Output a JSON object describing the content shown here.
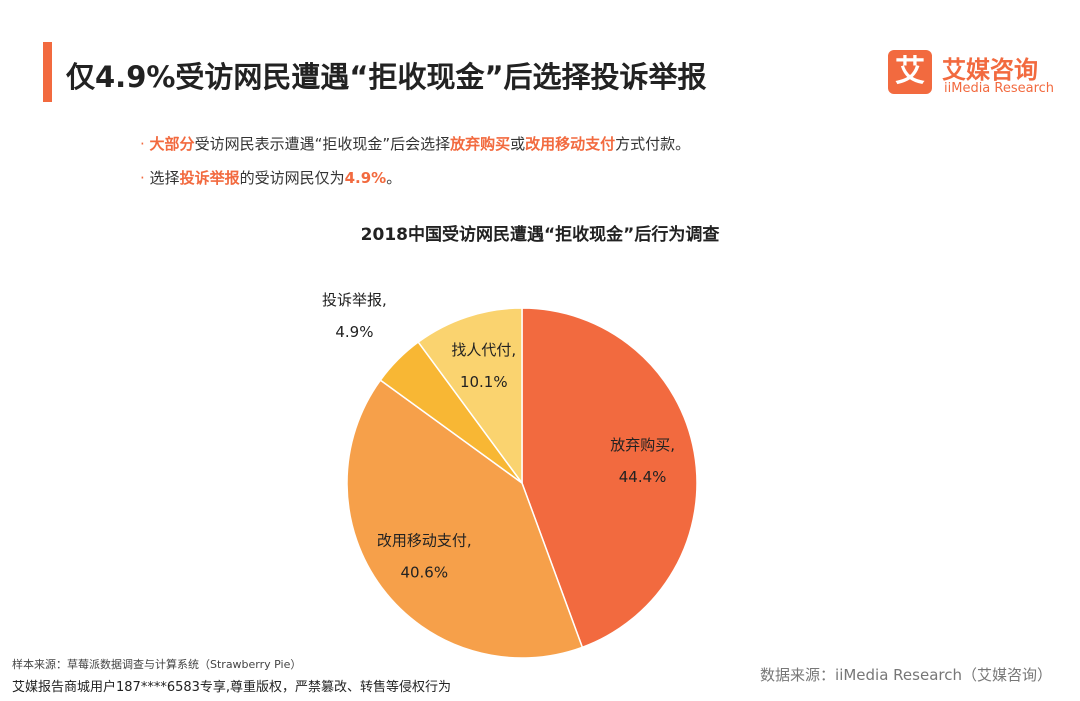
{
  "header": {
    "title": "仅4.9%受访网民遭遇“拒收现金”后选择投诉举报",
    "logo_icon": "艾",
    "logo_name": "艾媒咨询",
    "logo_sub": "iiMedia Research"
  },
  "bullets": [
    [
      {
        "text": "大部分",
        "highlight": true
      },
      {
        "text": "受访网民表示遭遇“拒收现金”后会选择",
        "highlight": false
      },
      {
        "text": "放弃购买",
        "highlight": true
      },
      {
        "text": "或",
        "highlight": false
      },
      {
        "text": "改用移动支付",
        "highlight": true
      },
      {
        "text": "方式付款。",
        "highlight": false
      }
    ],
    [
      {
        "text": "选择",
        "highlight": false
      },
      {
        "text": "投诉举报",
        "highlight": true
      },
      {
        "text": "的受访网民仅为",
        "highlight": false
      },
      {
        "text": "4.9%",
        "highlight": true
      },
      {
        "text": "。",
        "highlight": false
      }
    ]
  ],
  "chart_data": {
    "type": "pie",
    "title": "2018中国受访网民遭遇“拒收现金”后行为调查",
    "categories": [
      "放弃购买,",
      "改用移动支付,",
      "投诉举报,",
      "找人代付,"
    ],
    "values": [
      44.4,
      40.6,
      4.9,
      10.1
    ],
    "value_labels": [
      "44.4%",
      "40.6%",
      "4.9%",
      "10.1%"
    ],
    "colors": [
      "#f26a3f",
      "#f6a04a",
      "#f8b734",
      "#fad36f"
    ]
  },
  "footer": {
    "sample_source": "样本来源：草莓派数据调查与计算系统（Strawberry Pie）",
    "notice": "艾媒报告商城用户187****6583专享,尊重版权，严禁篡改、转售等侵权行为",
    "data_source": "数据来源：iiMedia Research（艾媒咨询）"
  }
}
